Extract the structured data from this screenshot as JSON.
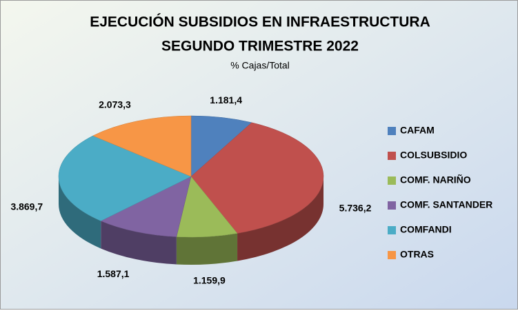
{
  "chart_data": {
    "type": "pie",
    "title": [
      "EJECUCIÓN SUBSIDIOS EN INFRAESTRUCTURA",
      "SEGUNDO TRIMESTRE 2022"
    ],
    "subtitle": "% Cajas/Total",
    "categories": [
      "CAFAM",
      "COLSUBSIDIO",
      "COMF. NARIÑO",
      "COMF. SANTANDER",
      "COMFANDI",
      "OTRAS"
    ],
    "values": [
      1181.4,
      5736.2,
      1159.9,
      1587.1,
      3869.7,
      2073.3
    ],
    "value_labels": [
      "1.181,4",
      "5.736,2",
      "1.159,9",
      "1.587,1",
      "3.869,7",
      "2.073,3"
    ],
    "colors": [
      "#4f81bd",
      "#c0504d",
      "#9bbb59",
      "#8064a2",
      "#4bacc6",
      "#f79646"
    ],
    "legend": "right"
  }
}
